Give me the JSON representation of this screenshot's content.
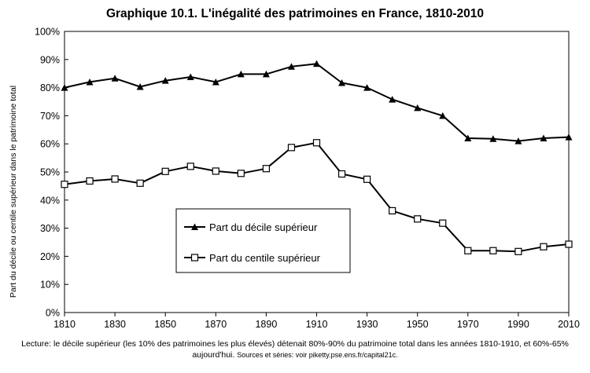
{
  "chart_data": {
    "type": "line",
    "title": "Graphique 10.1. L'inégalité des patrimoines en France, 1810-2010",
    "xlabel": "",
    "ylabel": "Part du décile ou centile supérieur dans le patrimoine total",
    "x": [
      1810,
      1820,
      1830,
      1840,
      1850,
      1860,
      1870,
      1880,
      1890,
      1900,
      1910,
      1920,
      1930,
      1940,
      1950,
      1960,
      1970,
      1980,
      1990,
      2000,
      2010
    ],
    "xlim": [
      1810,
      2010
    ],
    "xticks": [
      "1810",
      "1830",
      "1850",
      "1870",
      "1890",
      "1910",
      "1930",
      "1950",
      "1970",
      "1990",
      "2010"
    ],
    "ylim": [
      0,
      100
    ],
    "yticks": [
      "0%",
      "10%",
      "20%",
      "30%",
      "40%",
      "50%",
      "60%",
      "70%",
      "80%",
      "90%",
      "100%"
    ],
    "series": [
      {
        "name": "Part du décile supérieur",
        "marker": "filled-triangle",
        "values": [
          80.0,
          82.0,
          83.3,
          80.3,
          82.5,
          83.8,
          82.0,
          84.8,
          84.8,
          87.5,
          88.5,
          81.7,
          80.0,
          75.8,
          72.8,
          70.0,
          62.0,
          61.8,
          61.0,
          62.0,
          62.4
        ]
      },
      {
        "name": "Part du centile supérieur",
        "marker": "open-square",
        "values": [
          45.6,
          46.8,
          47.5,
          46.0,
          50.2,
          52.0,
          50.3,
          49.5,
          51.2,
          58.7,
          60.4,
          49.3,
          47.4,
          36.2,
          33.3,
          31.8,
          22.0,
          22.0,
          21.7,
          23.4,
          24.3
        ]
      }
    ],
    "grid": false,
    "legend": "inside-center",
    "colors": {
      "line": "#000000",
      "background": "#ffffff"
    }
  },
  "caption": {
    "main": "Lecture: le décile supérieur (les 10% des patrimoines les plus élevés) détenait 80%-90% du patrimoine total dans les années 1810-1910, et 60%-65% aujourd'hui.",
    "source": "Sources et séries: voir piketty.pse.ens.fr/capital21c."
  }
}
